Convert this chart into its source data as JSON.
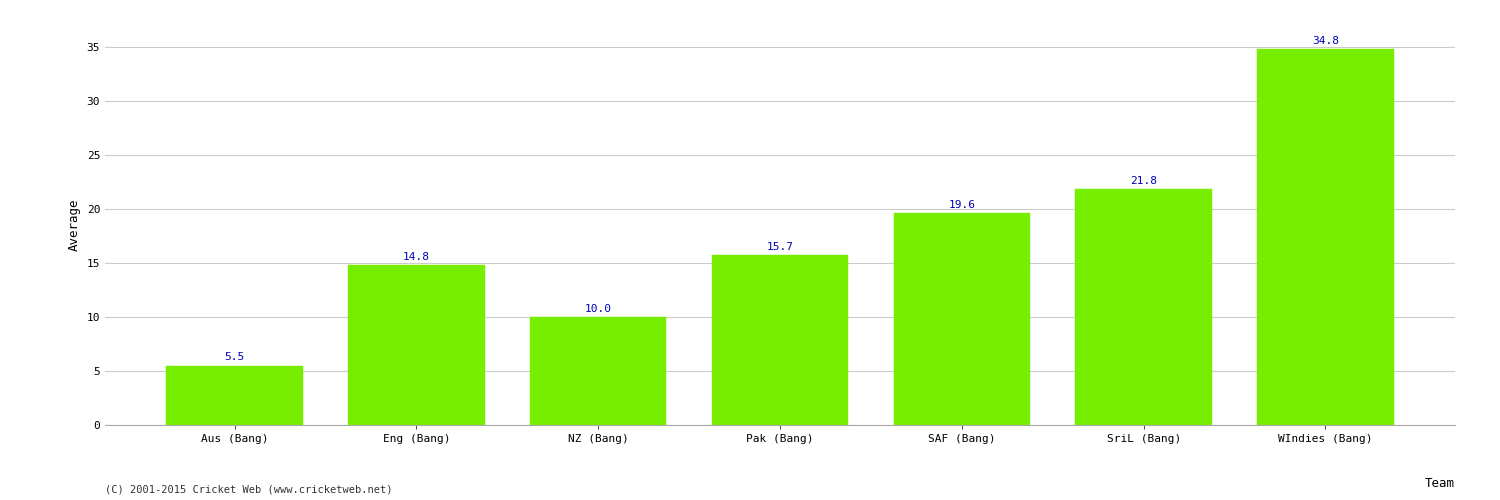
{
  "categories": [
    "Aus (Bang)",
    "Eng (Bang)",
    "NZ (Bang)",
    "Pak (Bang)",
    "SAF (Bang)",
    "SriL (Bang)",
    "WIndies (Bang)"
  ],
  "values": [
    5.5,
    14.8,
    10.0,
    15.7,
    19.6,
    21.8,
    34.8
  ],
  "bar_color": "#77ee00",
  "bar_edge_color": "#77ee00",
  "value_label_color": "#0000bb",
  "xlabel": "Team",
  "ylabel": "Average",
  "ylim": [
    0,
    37
  ],
  "yticks": [
    0,
    5,
    10,
    15,
    20,
    25,
    30,
    35
  ],
  "grid_color": "#cccccc",
  "background_color": "#ffffff",
  "footer_text": "(C) 2001-2015 Cricket Web (www.cricketweb.net)",
  "value_fontsize": 8,
  "axis_label_fontsize": 9,
  "tick_fontsize": 8,
  "footer_fontsize": 7.5
}
